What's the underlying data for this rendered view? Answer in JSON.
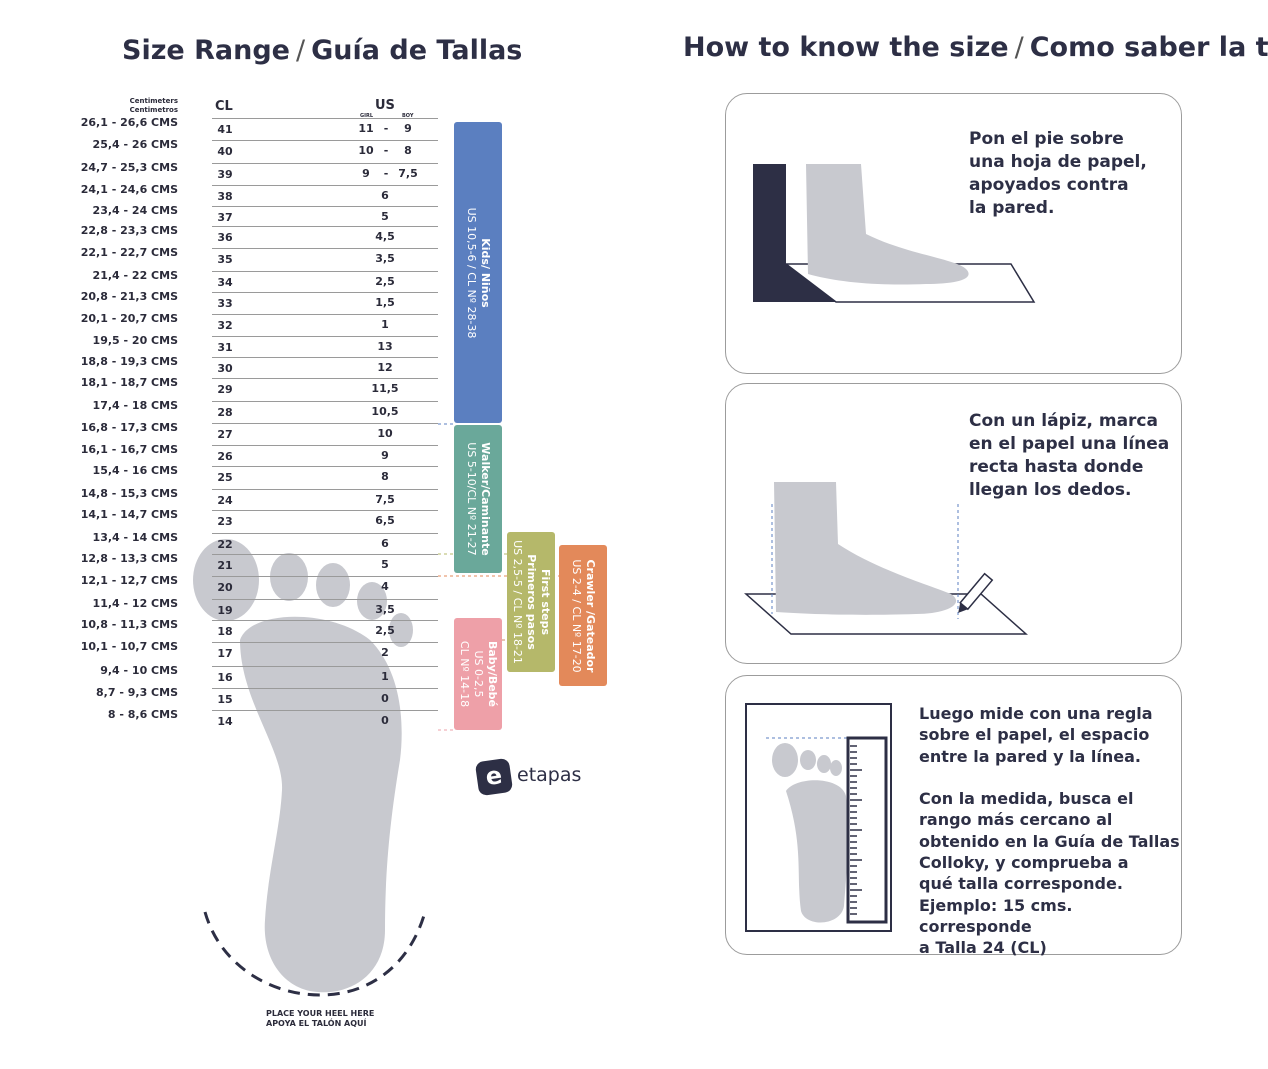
{
  "left": {
    "title": "Size Range",
    "title_es": "Guía de Tallas",
    "cm_header": [
      "Centimeters",
      "Centimetros"
    ],
    "cl_header": "CL",
    "us_header": "US",
    "girl_label": "GIRL",
    "boy_label": "BOY",
    "rows": [
      {
        "cm": "26,1  - 26,6 CMS",
        "cl": "41",
        "us": "",
        "girl": "11",
        "boy": "9"
      },
      {
        "cm": "25,4 - 26 CMS",
        "cl": "40",
        "us": "",
        "girl": "10",
        "boy": "8"
      },
      {
        "cm": "24,7 - 25,3 CMS",
        "cl": "39",
        "us": "",
        "girl": "9",
        "boy": "7,5"
      },
      {
        "cm": "24,1 - 24,6 CMS",
        "cl": "38",
        "us": "6"
      },
      {
        "cm": "23,4 - 24 CMS",
        "cl": "37",
        "us": "5"
      },
      {
        "cm": "22,8 - 23,3 CMS",
        "cl": "36",
        "us": "4,5"
      },
      {
        "cm": "22,1 - 22,7 CMS",
        "cl": "35",
        "us": "3,5"
      },
      {
        "cm": "21,4 - 22 CMS",
        "cl": "34",
        "us": "2,5"
      },
      {
        "cm": "20,8 -  21,3 CMS",
        "cl": "33",
        "us": "1,5"
      },
      {
        "cm": "20,1 - 20,7 CMS",
        "cl": "32",
        "us": "1"
      },
      {
        "cm": "19,5 - 20 CMS",
        "cl": "31",
        "us": "13"
      },
      {
        "cm": "18,8 - 19,3 CMS",
        "cl": "30",
        "us": "12"
      },
      {
        "cm": "18,1 - 18,7 CMS",
        "cl": "29",
        "us": "11,5"
      },
      {
        "cm": "17,4 - 18 CMS",
        "cl": "28",
        "us": "10,5"
      },
      {
        "cm": "16,8 - 17,3 CMS",
        "cl": "27",
        "us": "10"
      },
      {
        "cm": "16,1 - 16,7 CMS",
        "cl": "26",
        "us": "9"
      },
      {
        "cm": "15,4 - 16 CMS",
        "cl": "25",
        "us": "8"
      },
      {
        "cm": "14,8 - 15,3 CMS",
        "cl": "24",
        "us": "7,5"
      },
      {
        "cm": "14,1  - 14,7 CMS",
        "cl": "23",
        "us": "6,5"
      },
      {
        "cm": "13,4 - 14 CMS",
        "cl": "22",
        "us": "6"
      },
      {
        "cm": "12,8 -  13,3 CMS",
        "cl": "21",
        "us": "5"
      },
      {
        "cm": "12,1 - 12,7 CMS",
        "cl": "20",
        "us": "4"
      },
      {
        "cm": "11,4 - 12 CMS",
        "cl": "19",
        "us": "3,5"
      },
      {
        "cm": "10,8 - 11,3 CMS",
        "cl": "18",
        "us": "2,5"
      },
      {
        "cm": "10,1 - 10,7 CMS",
        "cl": "17",
        "us": "2"
      },
      {
        "cm": "9,4 - 10 CMS",
        "cl": "16",
        "us": "1"
      },
      {
        "cm": "8,7 - 9,3 CMS",
        "cl": "15",
        "us": "0"
      },
      {
        "cm": "8 - 8,6 CMS",
        "cl": "14",
        "us": "0"
      }
    ],
    "categories": [
      {
        "name": "Kids/ Niños",
        "range": "US 10,5-6 / CL Nº 28-38",
        "color": "#5b7fc0"
      },
      {
        "name": "Walker/Caminante",
        "range": "US 5-10/CL Nº 21-27",
        "color": "#6aa89a"
      },
      {
        "name": "Baby/Bebé",
        "range": "US 0-2,5",
        "range2": "CL Nº 14-18",
        "color": "#eea0a8"
      },
      {
        "name": "First steps",
        "name2": "Primeros pasos",
        "range": "US 2,5-5 / CL Nº 18-21",
        "color": "#b5b86a"
      },
      {
        "name": "Crawler /Gateador",
        "range": "US 2-4 / CL Nº 17-20",
        "color": "#e3895a"
      }
    ],
    "logo": "etapas",
    "heel_text": [
      "PLACE YOUR HEEL HERE",
      "APOYA EL TALÓN AQUÍ"
    ]
  },
  "right": {
    "title": "How to know the size",
    "title_es": "Como saber la talla",
    "steps": [
      {
        "lines": [
          "Pon el pie sobre",
          "una hoja de papel,",
          "apoyados contra",
          "la pared."
        ]
      },
      {
        "lines": [
          "Con un lápiz, marca",
          "en el papel una línea",
          "recta hasta donde",
          "llegan los dedos."
        ]
      },
      {
        "lines": [
          "Luego mide con una regla",
          "sobre el papel, el espacio",
          "entre la pared y la línea.",
          "",
          "Con la medida, busca el",
          "rango más cercano al",
          "obtenido en la Guía de Tallas",
          "Colloky, y comprueba a",
          "qué talla corresponde.",
          "Ejemplo:  15 cms. corresponde",
          "a Talla 24 (CL)"
        ]
      }
    ]
  },
  "colors": {
    "foot": "#c8c9cf",
    "navy": "#2d2f45"
  }
}
